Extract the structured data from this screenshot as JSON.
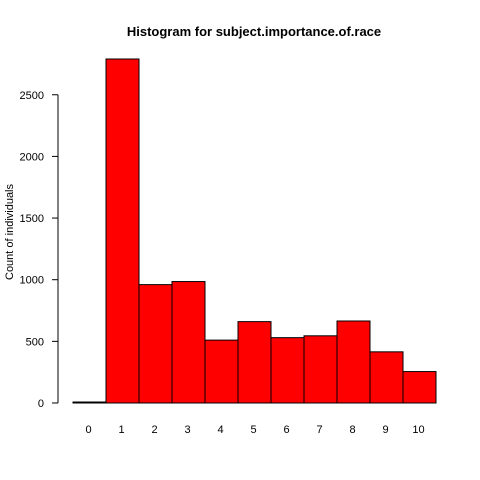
{
  "chart_data": {
    "type": "bar",
    "title": "Histogram for subject.importance.of.race",
    "xlabel": "",
    "ylabel": "Count of individuals",
    "categories": [
      "0",
      "1",
      "2",
      "3",
      "4",
      "5",
      "6",
      "7",
      "8",
      "9",
      "10"
    ],
    "values": [
      8,
      2790,
      960,
      985,
      510,
      660,
      530,
      545,
      665,
      415,
      255
    ],
    "ylim": [
      0,
      2790
    ],
    "yticks": [
      0,
      500,
      1000,
      1500,
      2000,
      2500
    ],
    "ytick_labels": [
      "0",
      "500",
      "1000",
      "1500",
      "2000",
      "2500"
    ],
    "grid": false,
    "bar_color": "#ff0000",
    "edge_color": "#000000"
  }
}
